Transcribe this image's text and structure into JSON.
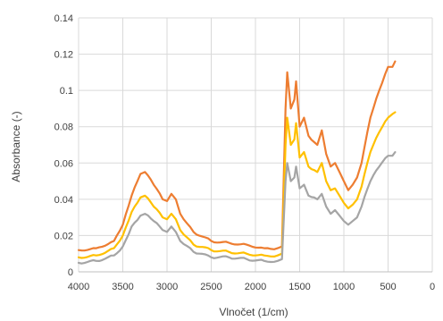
{
  "chart_data": {
    "type": "line",
    "title": "",
    "xlabel": "Vlnočet (1/cm)",
    "ylabel": "Absorbance (-)",
    "xlim": [
      4000,
      0
    ],
    "ylim": [
      0,
      0.14
    ],
    "x_ticks": [
      "4000",
      "3500",
      "3000",
      "2500",
      "2000",
      "1500",
      "1000",
      "500",
      "0"
    ],
    "y_ticks": [
      "0",
      "0.02",
      "0.04",
      "0.06",
      "0.08",
      "0.1",
      "0.12",
      "0.14"
    ],
    "grid": true,
    "legend": "none",
    "series": [
      {
        "color": "#ed7d31",
        "x": [
          4000,
          3800,
          3600,
          3500,
          3400,
          3300,
          3250,
          3150,
          3050,
          3000,
          2950,
          2900,
          2850,
          2700,
          2500,
          2300,
          2100,
          1900,
          1750,
          1700,
          1660,
          1640,
          1600,
          1560,
          1540,
          1500,
          1450,
          1400,
          1300,
          1250,
          1200,
          1150,
          1100,
          1050,
          1000,
          950,
          900,
          850,
          800,
          700,
          600,
          500,
          450,
          420
        ],
        "y": [
          0.012,
          0.013,
          0.017,
          0.026,
          0.042,
          0.054,
          0.055,
          0.048,
          0.04,
          0.039,
          0.043,
          0.04,
          0.032,
          0.022,
          0.017,
          0.016,
          0.015,
          0.013,
          0.013,
          0.014,
          0.09,
          0.11,
          0.09,
          0.095,
          0.105,
          0.08,
          0.085,
          0.075,
          0.07,
          0.078,
          0.065,
          0.058,
          0.06,
          0.055,
          0.05,
          0.045,
          0.048,
          0.052,
          0.06,
          0.085,
          0.1,
          0.113,
          0.113,
          0.116
        ]
      },
      {
        "color": "#ffc000",
        "x": [
          4000,
          3800,
          3600,
          3500,
          3400,
          3300,
          3250,
          3150,
          3050,
          3000,
          2950,
          2900,
          2850,
          2700,
          2500,
          2300,
          2100,
          1900,
          1750,
          1700,
          1660,
          1640,
          1600,
          1560,
          1540,
          1500,
          1450,
          1400,
          1300,
          1250,
          1200,
          1150,
          1100,
          1050,
          1000,
          950,
          900,
          850,
          800,
          700,
          600,
          500,
          450,
          420
        ],
        "y": [
          0.008,
          0.009,
          0.013,
          0.02,
          0.033,
          0.041,
          0.042,
          0.036,
          0.03,
          0.029,
          0.032,
          0.029,
          0.023,
          0.015,
          0.012,
          0.011,
          0.01,
          0.009,
          0.009,
          0.01,
          0.07,
          0.085,
          0.07,
          0.073,
          0.082,
          0.063,
          0.066,
          0.058,
          0.055,
          0.06,
          0.05,
          0.045,
          0.046,
          0.042,
          0.038,
          0.035,
          0.037,
          0.04,
          0.047,
          0.066,
          0.077,
          0.085,
          0.087,
          0.088
        ]
      },
      {
        "color": "#a5a5a5",
        "x": [
          4000,
          3800,
          3600,
          3500,
          3400,
          3300,
          3250,
          3150,
          3050,
          3000,
          2950,
          2900,
          2850,
          2700,
          2500,
          2300,
          2100,
          1900,
          1750,
          1700,
          1660,
          1640,
          1600,
          1560,
          1540,
          1500,
          1450,
          1400,
          1300,
          1250,
          1200,
          1150,
          1100,
          1050,
          1000,
          950,
          900,
          850,
          800,
          700,
          600,
          500,
          450,
          420
        ],
        "y": [
          0.005,
          0.006,
          0.009,
          0.014,
          0.025,
          0.031,
          0.032,
          0.028,
          0.023,
          0.022,
          0.025,
          0.022,
          0.017,
          0.011,
          0.008,
          0.008,
          0.007,
          0.006,
          0.006,
          0.007,
          0.05,
          0.06,
          0.05,
          0.052,
          0.058,
          0.046,
          0.048,
          0.042,
          0.04,
          0.043,
          0.036,
          0.032,
          0.034,
          0.031,
          0.028,
          0.026,
          0.028,
          0.03,
          0.036,
          0.05,
          0.058,
          0.064,
          0.064,
          0.066
        ]
      }
    ]
  }
}
